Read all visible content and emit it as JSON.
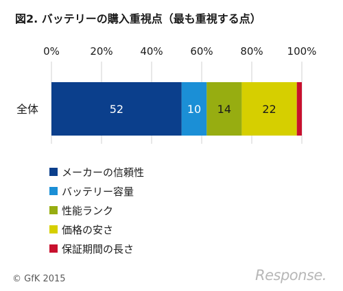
{
  "header": {
    "title": "図2. バッテリーの購入重視点（最も重視する点）"
  },
  "chart_data": {
    "type": "bar",
    "orientation": "horizontal",
    "stacked": true,
    "categories": [
      "全体"
    ],
    "x_ticks": [
      "0%",
      "20%",
      "40%",
      "60%",
      "80%",
      "100%"
    ],
    "xlim": [
      0,
      100
    ],
    "grid": true,
    "legend_position": "bottom-left",
    "series": [
      {
        "name": "メーカーの信頼性",
        "values": [
          52
        ],
        "label": "52",
        "color": "#0b3f8c"
      },
      {
        "name": "バッテリー容量",
        "values": [
          10
        ],
        "label": "10",
        "color": "#1b8fd6"
      },
      {
        "name": "性能ランク",
        "values": [
          14
        ],
        "label": "14",
        "color": "#97ad11"
      },
      {
        "name": "価格の安さ",
        "values": [
          22
        ],
        "label": "22",
        "color": "#d6cf00"
      },
      {
        "name": "保証期間の長さ",
        "values": [
          2
        ],
        "label": "",
        "color": "#c8102e"
      }
    ]
  },
  "footer": {
    "copyright": "© GfK 2015",
    "watermark": "Response."
  }
}
